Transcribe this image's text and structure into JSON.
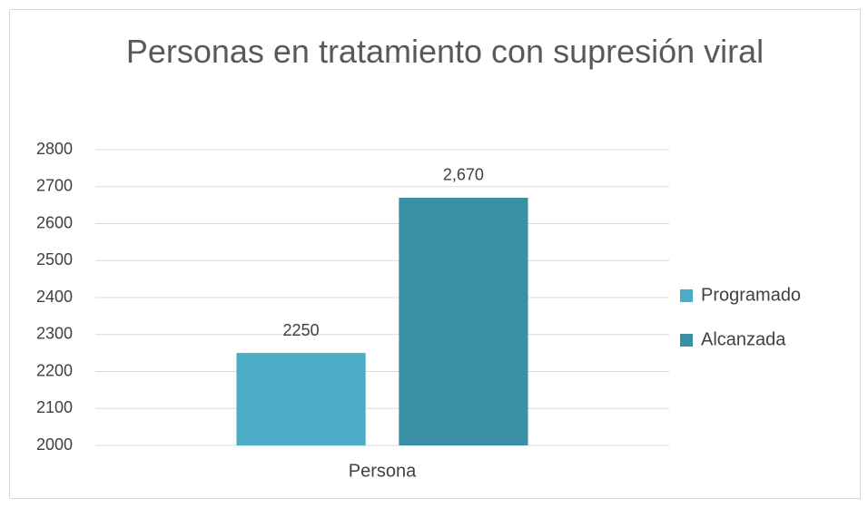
{
  "chart_data": {
    "type": "bar",
    "title": "Personas en tratamiento con supresión viral",
    "categories": [
      "Persona"
    ],
    "series": [
      {
        "name": "Programado",
        "color": "#4bacc6",
        "values": [
          2250
        ],
        "value_labels": [
          "2250"
        ]
      },
      {
        "name": "Alcanzada",
        "color": "#3b8fa5",
        "values": [
          2670
        ],
        "value_labels": [
          "2,670"
        ]
      }
    ],
    "ylim": [
      2000,
      2800
    ],
    "yticks": [
      2000,
      2100,
      2200,
      2300,
      2400,
      2500,
      2600,
      2700,
      2800
    ],
    "grid": true,
    "legend": "right"
  }
}
